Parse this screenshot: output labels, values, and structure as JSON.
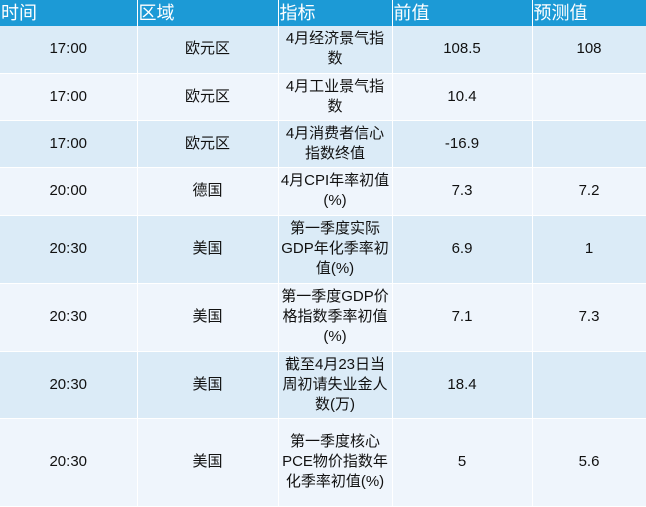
{
  "headers": [
    "时间",
    "区域",
    "指标",
    "前值",
    "预测值"
  ],
  "rows": [
    {
      "time": "17:00",
      "region": "欧元区",
      "indicator": "4月经济景气指数",
      "previous": "108.5",
      "forecast": "108"
    },
    {
      "time": "17:00",
      "region": "欧元区",
      "indicator": "4月工业景气指数",
      "previous": "10.4",
      "forecast": ""
    },
    {
      "time": "17:00",
      "region": "欧元区",
      "indicator": "4月消费者信心指数终值",
      "previous": "-16.9",
      "forecast": ""
    },
    {
      "time": "20:00",
      "region": "德国",
      "indicator": "4月CPI年率初值(%)",
      "previous": "7.3",
      "forecast": "7.2"
    },
    {
      "time": "20:30",
      "region": "美国",
      "indicator": "第一季度实际GDP年化季率初值(%)",
      "previous": "6.9",
      "forecast": "1"
    },
    {
      "time": "20:30",
      "region": "美国",
      "indicator": "第一季度GDP价格指数季率初值(%)",
      "previous": "7.1",
      "forecast": "7.3"
    },
    {
      "time": "20:30",
      "region": "美国",
      "indicator": "截至4月23日当周初请失业金人数(万)",
      "previous": "18.4",
      "forecast": ""
    },
    {
      "time": "20:30",
      "region": "美国",
      "indicator": "第一季度核心PCE物价指数年化季率初值(%)",
      "previous": "5",
      "forecast": "5.6"
    }
  ]
}
